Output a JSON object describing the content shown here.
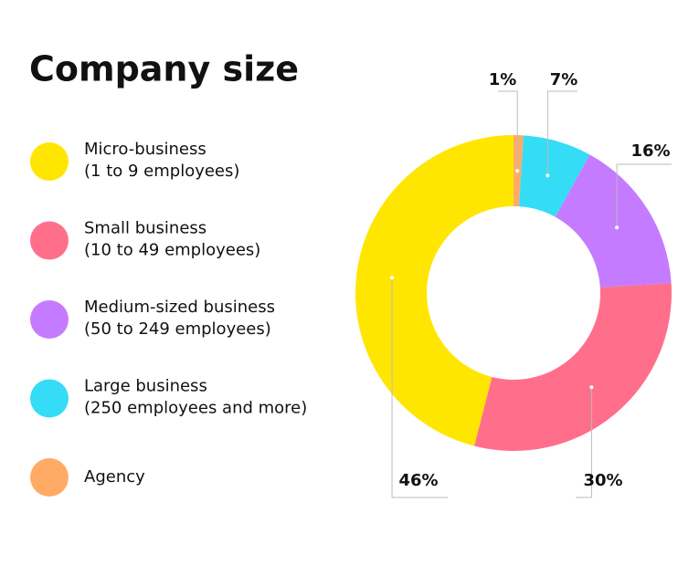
{
  "chart_data": {
    "type": "donut",
    "title": "Company size",
    "categories": [
      "Micro-business",
      "Small business",
      "Medium-sized business",
      "Large business",
      "Agency"
    ],
    "category_notes": [
      "(1 to 9 employees)",
      "(10 to 49 employees)",
      "(50 to 249 employees)",
      "(250 employees and more)",
      null
    ],
    "values": [
      46,
      30,
      16,
      7,
      1
    ],
    "value_labels": [
      "46%",
      "30%",
      "16%",
      "7%",
      "1%"
    ],
    "colors": [
      "#ffe600",
      "#ff6f8c",
      "#c57bff",
      "#35dcf5",
      "#ffab66"
    ]
  }
}
